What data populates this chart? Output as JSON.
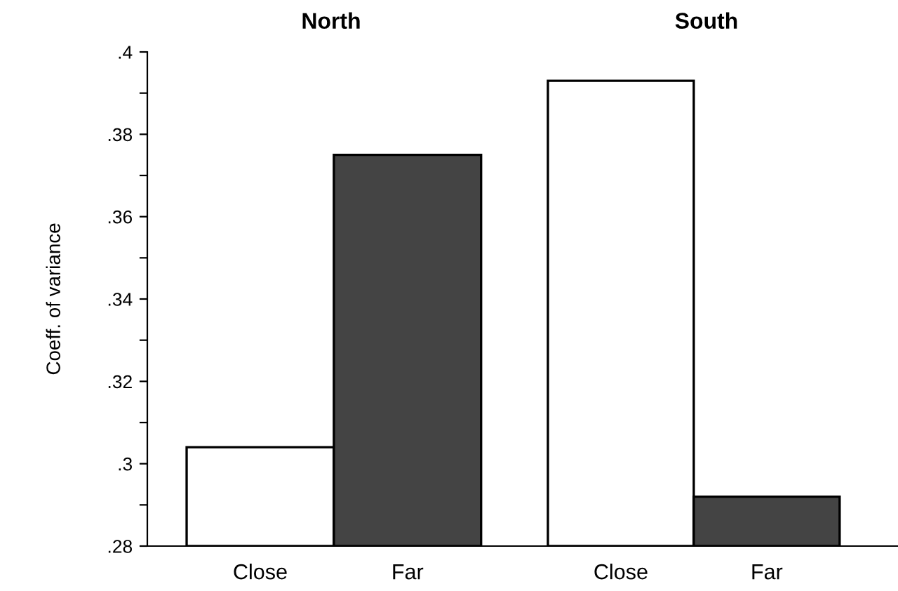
{
  "chart_data": [
    {
      "type": "bar",
      "title": "North",
      "ylabel": "Coeff. of variance",
      "categories": [
        "Close",
        "Far"
      ],
      "values": [
        0.304,
        0.375
      ],
      "colors": [
        "#ffffff",
        "#444444"
      ],
      "ylim": [
        0.28,
        0.4
      ],
      "yticks": [
        {
          "value": 0.28,
          "label": ".28"
        },
        {
          "value": 0.29,
          "label": null
        },
        {
          "value": 0.3,
          "label": ".3"
        },
        {
          "value": 0.31,
          "label": null
        },
        {
          "value": 0.32,
          "label": ".32"
        },
        {
          "value": 0.33,
          "label": null
        },
        {
          "value": 0.34,
          "label": ".34"
        },
        {
          "value": 0.35,
          "label": null
        },
        {
          "value": 0.36,
          "label": ".36"
        },
        {
          "value": 0.37,
          "label": null
        },
        {
          "value": 0.38,
          "label": ".38"
        },
        {
          "value": 0.39,
          "label": null
        },
        {
          "value": 0.4,
          "label": ".4"
        }
      ],
      "grid": false,
      "legend": false
    },
    {
      "type": "bar",
      "title": "South",
      "categories": [
        "Close",
        "Far"
      ],
      "values": [
        0.393,
        0.292
      ],
      "colors": [
        "#ffffff",
        "#444444"
      ],
      "ylim": [
        0.28,
        0.4
      ],
      "tick_labels": "x",
      "grid": false,
      "legend": false
    }
  ]
}
